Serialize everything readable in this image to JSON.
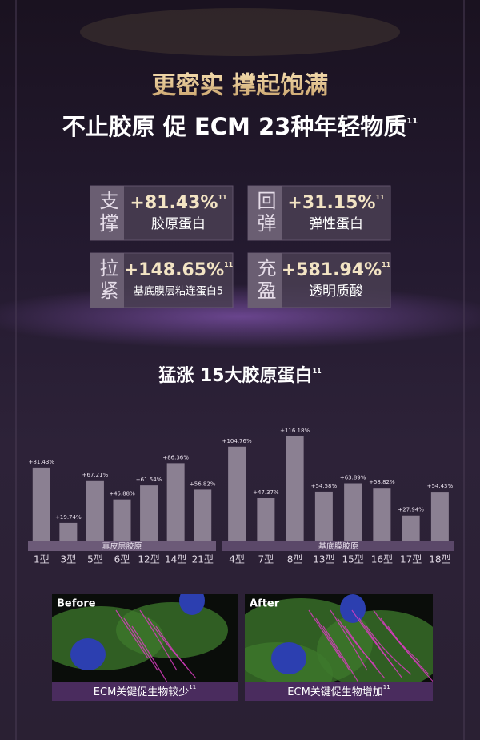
{
  "header": {
    "title": "更密实 撑起饱满",
    "subtitle": "不止胶原 促 ECM 23种年轻物质",
    "footnote": "11"
  },
  "stats": [
    {
      "tag": "支撑",
      "value": "+81.43%",
      "label": "胶原蛋白"
    },
    {
      "tag": "回弹",
      "value": "+31.15%",
      "label": "弹性蛋白"
    },
    {
      "tag": "拉紧",
      "value": "+148.65%",
      "label": "基底膜层粘连蛋白5"
    },
    {
      "tag": "充盈",
      "value": "+581.94%",
      "label": "透明质酸"
    }
  ],
  "section_title": "猛涨 15大胶原蛋白",
  "chart_data": {
    "type": "bar",
    "series": [
      {
        "name": "真皮层胶原",
        "color": "#8b8092",
        "categories": [
          "1型",
          "3型",
          "5型",
          "6型",
          "12型",
          "14型",
          "21型"
        ],
        "values": [
          81.43,
          19.74,
          67.21,
          45.88,
          61.54,
          86.36,
          56.82
        ],
        "value_labels": [
          "+81.43%",
          "+19.74%",
          "+67.21%",
          "+45.88%",
          "+61.54%",
          "+86.36%",
          "+56.82%"
        ]
      },
      {
        "name": "基底膜胶原",
        "color": "#8b8092",
        "categories": [
          "4型",
          "7型",
          "8型",
          "13型",
          "15型",
          "16型",
          "17型",
          "18型"
        ],
        "values": [
          104.76,
          47.37,
          116.18,
          54.58,
          63.89,
          58.82,
          27.94,
          54.43
        ],
        "value_labels": [
          "+104.76%",
          "+47.37%",
          "+116.18%",
          "+54.58%",
          "+63.89%",
          "+58.82%",
          "+27.94%",
          "+54.43%"
        ]
      }
    ]
  },
  "images": [
    {
      "label": "Before",
      "caption": "ECM关键促生物较少"
    },
    {
      "label": "After",
      "caption": "ECM关键促生物增加"
    }
  ]
}
